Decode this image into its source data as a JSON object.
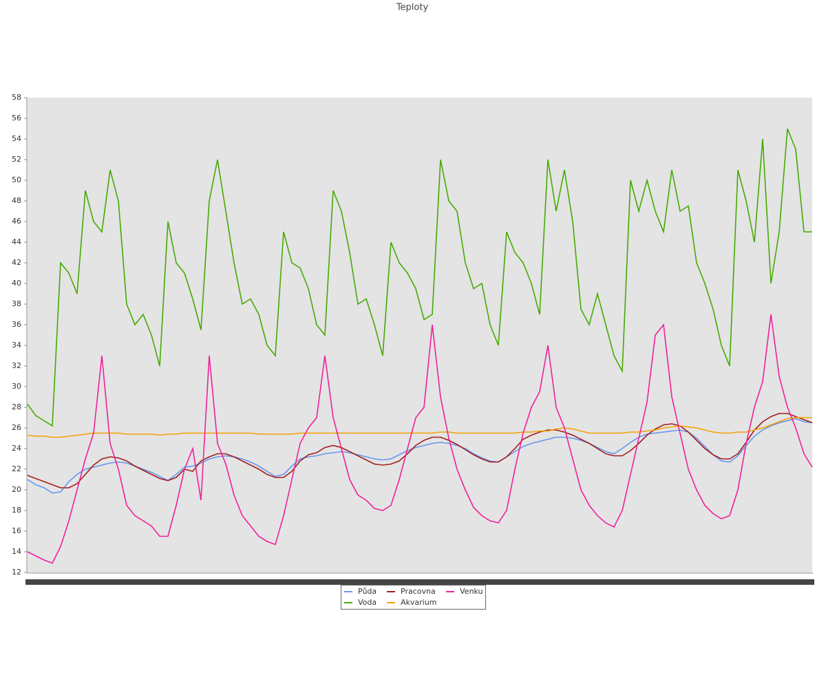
{
  "chart_data": {
    "type": "line",
    "title": "Teploty",
    "ylim": [
      12,
      58
    ],
    "yticks": [
      12,
      14,
      16,
      18,
      20,
      22,
      24,
      26,
      28,
      30,
      32,
      34,
      36,
      38,
      40,
      42,
      44,
      46,
      48,
      50,
      52,
      54,
      56,
      58
    ],
    "series": [
      {
        "name": "Půda",
        "color": "#6495ed",
        "values": [
          21,
          20.5,
          20.2,
          19.7,
          19.8,
          20.8,
          21.5,
          22,
          22.2,
          22.4,
          22.6,
          22.7,
          22.6,
          22.3,
          22,
          21.7,
          21.3,
          20.9,
          21.5,
          22.2,
          22.3,
          22.6,
          23,
          23.2,
          23.3,
          23.2,
          23,
          22.7,
          22.3,
          21.8,
          21.3,
          21.5,
          22.3,
          23,
          23.2,
          23.3,
          23.5,
          23.6,
          23.7,
          23.6,
          23.4,
          23.2,
          23,
          22.9,
          23,
          23.4,
          23.8,
          24.1,
          24.3,
          24.5,
          24.6,
          24.5,
          24.3,
          24,
          23.5,
          23.1,
          22.8,
          22.7,
          23.2,
          23.7,
          24.2,
          24.5,
          24.7,
          24.9,
          25.1,
          25.1,
          25,
          24.8,
          24.5,
          24.1,
          23.7,
          23.5,
          24,
          24.6,
          25.1,
          25.4,
          25.5,
          25.6,
          25.7,
          25.8,
          25.6,
          25,
          24.2,
          23.4,
          22.8,
          22.7,
          23.3,
          24.3,
          25.2,
          25.8,
          26.2,
          26.5,
          26.7,
          26.9,
          26.6,
          26.5
        ]
      },
      {
        "name": "Voda",
        "color": "#44aa00",
        "values": [
          28.3,
          27.2,
          26.7,
          26.2,
          42,
          41,
          39,
          49,
          46,
          45,
          51,
          48,
          38,
          36,
          37,
          35,
          32,
          46,
          42,
          41,
          38.5,
          35.5,
          48,
          52,
          47,
          42,
          38,
          38.5,
          37,
          34,
          33,
          45,
          42,
          41.5,
          39.5,
          36,
          35,
          49,
          47,
          43,
          38,
          38.5,
          36,
          33,
          44,
          42,
          41,
          39.5,
          36.5,
          37,
          52,
          48,
          47,
          42,
          39.5,
          40,
          36,
          34,
          45,
          43,
          42,
          40,
          37,
          52,
          47,
          51,
          46,
          37.5,
          36,
          39,
          36,
          33,
          31.5,
          50,
          47,
          50,
          47,
          45,
          51,
          47,
          47.5,
          42,
          40,
          37.5,
          34,
          32,
          51,
          48,
          44,
          54,
          40,
          45,
          55,
          53,
          45,
          45
        ]
      },
      {
        "name": "Pracovna",
        "color": "#a51c1c",
        "values": [
          21.4,
          21.1,
          20.8,
          20.5,
          20.2,
          20.2,
          20.6,
          21.5,
          22.4,
          23,
          23.2,
          23.1,
          22.8,
          22.3,
          21.9,
          21.5,
          21.1,
          20.9,
          21.2,
          22,
          21.8,
          22.8,
          23.2,
          23.5,
          23.5,
          23.2,
          22.8,
          22.4,
          22,
          21.5,
          21.2,
          21.2,
          21.8,
          22.8,
          23.4,
          23.6,
          24.1,
          24.3,
          24.1,
          23.7,
          23.3,
          22.9,
          22.5,
          22.4,
          22.5,
          22.8,
          23.5,
          24.3,
          24.8,
          25.1,
          25.1,
          24.8,
          24.4,
          23.9,
          23.4,
          23,
          22.7,
          22.7,
          23.2,
          24,
          24.9,
          25.3,
          25.6,
          25.8,
          25.8,
          25.6,
          25.3,
          24.9,
          24.5,
          24,
          23.5,
          23.3,
          23.3,
          23.8,
          24.5,
          25.3,
          25.9,
          26.3,
          26.4,
          26.2,
          25.6,
          24.8,
          24,
          23.4,
          23,
          23,
          23.5,
          24.6,
          25.8,
          26.6,
          27.1,
          27.4,
          27.4,
          27.1,
          26.8,
          26.5
        ]
      },
      {
        "name": "Akvarium",
        "color": "#f5a000",
        "values": [
          25.3,
          25.2,
          25.2,
          25.1,
          25.1,
          25.2,
          25.3,
          25.4,
          25.5,
          25.5,
          25.5,
          25.5,
          25.4,
          25.4,
          25.4,
          25.4,
          25.3,
          25.4,
          25.4,
          25.5,
          25.5,
          25.5,
          25.5,
          25.5,
          25.5,
          25.5,
          25.5,
          25.5,
          25.4,
          25.4,
          25.4,
          25.4,
          25.4,
          25.5,
          25.5,
          25.5,
          25.5,
          25.5,
          25.5,
          25.5,
          25.5,
          25.5,
          25.5,
          25.5,
          25.5,
          25.5,
          25.5,
          25.5,
          25.5,
          25.5,
          25.6,
          25.6,
          25.5,
          25.5,
          25.5,
          25.5,
          25.5,
          25.5,
          25.5,
          25.5,
          25.6,
          25.6,
          25.7,
          25.7,
          25.9,
          26,
          25.9,
          25.7,
          25.5,
          25.5,
          25.5,
          25.5,
          25.5,
          25.6,
          25.6,
          25.7,
          25.8,
          26,
          26.1,
          26.2,
          26.1,
          26,
          25.8,
          25.6,
          25.5,
          25.5,
          25.6,
          25.6,
          25.8,
          26,
          26.3,
          26.6,
          26.9,
          27,
          27,
          27
        ]
      },
      {
        "name": "Venku",
        "color": "#f0209a",
        "values": [
          14,
          13.6,
          13.2,
          12.9,
          14.5,
          17,
          20,
          23,
          25.5,
          33,
          24.5,
          22,
          18.5,
          17.5,
          17,
          16.5,
          15.5,
          15.5,
          18.5,
          22,
          24,
          19,
          33,
          24.5,
          22.5,
          19.5,
          17.5,
          16.5,
          15.5,
          15,
          14.7,
          17.5,
          21,
          24.5,
          26,
          27,
          33,
          27,
          24,
          21,
          19.5,
          19,
          18.2,
          18,
          18.5,
          21,
          24,
          27,
          28,
          36,
          29,
          25,
          22,
          20,
          18.3,
          17.5,
          17,
          16.8,
          18,
          22,
          25.5,
          28,
          29.5,
          34,
          28,
          26,
          23,
          20,
          18.5,
          17.5,
          16.8,
          16.4,
          18,
          21.5,
          25,
          28.5,
          35,
          36,
          29,
          25.5,
          22,
          20,
          18.5,
          17.7,
          17.2,
          17.5,
          20,
          24.5,
          28,
          30.5,
          37,
          31,
          28,
          26,
          23.5,
          22.2
        ]
      }
    ]
  }
}
